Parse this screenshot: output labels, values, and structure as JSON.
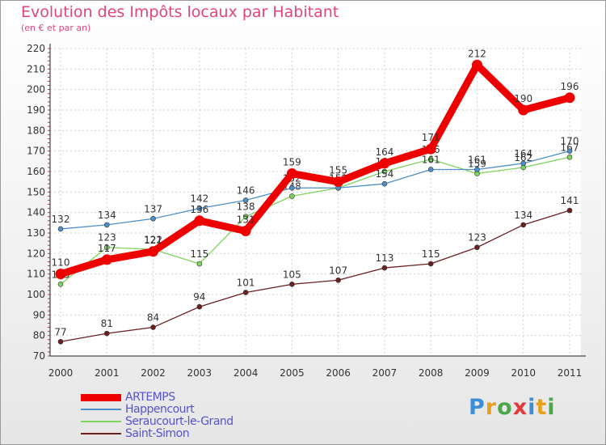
{
  "chart_data": {
    "type": "line",
    "title": "Evolution des Impôts locaux par Habitant",
    "subtitle": "(en € et par an)",
    "xlabel": "",
    "ylabel": "",
    "ylim": [
      70,
      220
    ],
    "yticks": [
      70,
      80,
      90,
      100,
      110,
      120,
      130,
      140,
      150,
      160,
      170,
      180,
      190,
      200,
      210,
      220
    ],
    "categories": [
      "2000",
      "2001",
      "2002",
      "2003",
      "2004",
      "2005",
      "2006",
      "2007",
      "2008",
      "2009",
      "2010",
      "2011"
    ],
    "series": [
      {
        "name": "ARTEMPS",
        "color": "#ee0000",
        "values": [
          110,
          117,
          121,
          136,
          131,
          159,
          155,
          164,
          171,
          212,
          190,
          196
        ]
      },
      {
        "name": "Happencourt",
        "color": "#4f8fc8",
        "values": [
          132,
          134,
          137,
          142,
          146,
          152,
          152,
          154,
          161,
          161,
          164,
          170
        ]
      },
      {
        "name": "Seraucourt-le-Grand",
        "color": "#7fd45f",
        "values": [
          105,
          123,
          122,
          115,
          138,
          148,
          152,
          160,
          166,
          159,
          162,
          167
        ]
      },
      {
        "name": "Saint-Simon",
        "color": "#6b1f1f",
        "values": [
          77,
          81,
          84,
          94,
          101,
          105,
          107,
          113,
          115,
          123,
          134,
          141
        ]
      }
    ]
  },
  "logo": {
    "letters": [
      "P",
      "r",
      "o",
      "x",
      "i",
      "t",
      "i"
    ]
  }
}
